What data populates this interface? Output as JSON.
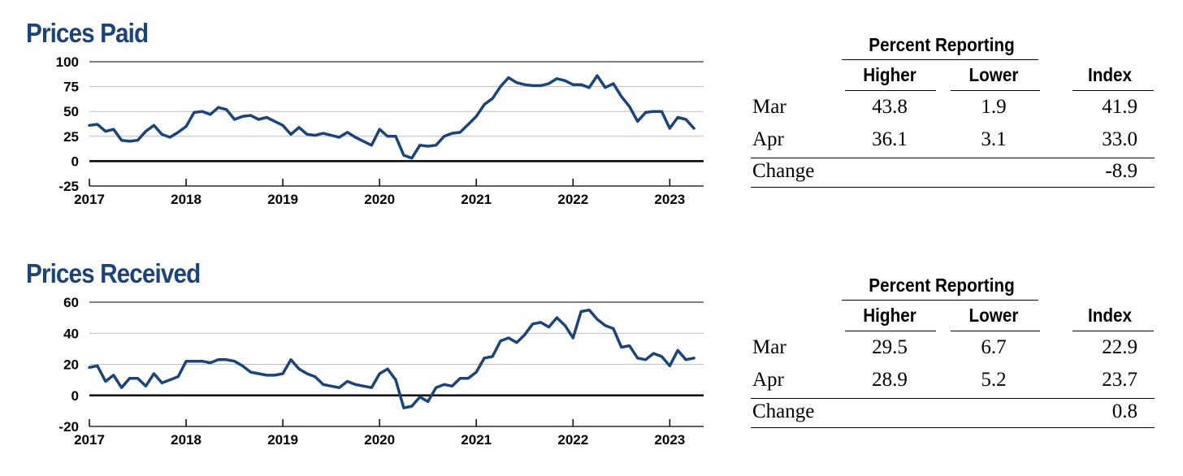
{
  "chart_data": [
    {
      "type": "line",
      "title": "Prices Paid",
      "xlabel": "",
      "ylabel": "",
      "ylim": [
        -25,
        100
      ],
      "yticks": [
        100,
        75,
        50,
        25,
        0,
        -25
      ],
      "xticks": [
        "2017",
        "2018",
        "2019",
        "2020",
        "2021",
        "2022",
        "2023"
      ],
      "xlim": [
        2017.0,
        2023.35
      ],
      "grid": true,
      "color": "#1c4478",
      "series": [
        {
          "x": [
            2017.0,
            2017.083,
            2017.167,
            2017.25,
            2017.333,
            2017.417,
            2017.5,
            2017.583,
            2017.667,
            2017.75,
            2017.833,
            2017.917,
            2018.0,
            2018.083,
            2018.167,
            2018.25,
            2018.333,
            2018.417,
            2018.5,
            2018.583,
            2018.667,
            2018.75,
            2018.833,
            2018.917,
            2019.0,
            2019.083,
            2019.167,
            2019.25,
            2019.333,
            2019.417,
            2019.5,
            2019.583,
            2019.667,
            2019.75,
            2019.833,
            2019.917,
            2020.0,
            2020.083,
            2020.167,
            2020.25,
            2020.333,
            2020.417,
            2020.5,
            2020.583,
            2020.667,
            2020.75,
            2020.833,
            2020.917,
            2021.0,
            2021.083,
            2021.167,
            2021.25,
            2021.333,
            2021.417,
            2021.5,
            2021.583,
            2021.667,
            2021.75,
            2021.833,
            2021.917,
            2022.0,
            2022.083,
            2022.167,
            2022.25,
            2022.333,
            2022.417,
            2022.5,
            2022.583,
            2022.667,
            2022.75,
            2022.833,
            2022.917,
            2023.0,
            2023.083,
            2023.167,
            2023.25
          ],
          "values": [
            36,
            37,
            30,
            32,
            21,
            20,
            21,
            30,
            36,
            27,
            24,
            29,
            35,
            49,
            50,
            47,
            54,
            52,
            42,
            45,
            46,
            42,
            44,
            40,
            36,
            27,
            34,
            27,
            26,
            28,
            26,
            24,
            29,
            24,
            20,
            16,
            32,
            25,
            25,
            6,
            3,
            16,
            15,
            16,
            25,
            28,
            29,
            37,
            45,
            57,
            63,
            75,
            84,
            79,
            77,
            76,
            76,
            78,
            83,
            81,
            77,
            77,
            74,
            86,
            74,
            78,
            65,
            55,
            40,
            49,
            50,
            50,
            33,
            44,
            42,
            33
          ]
        }
      ]
    },
    {
      "type": "line",
      "title": "Prices Received",
      "xlabel": "",
      "ylabel": "",
      "ylim": [
        -20,
        60
      ],
      "yticks": [
        60,
        40,
        20,
        0,
        -20
      ],
      "xticks": [
        "2017",
        "2018",
        "2019",
        "2020",
        "2021",
        "2022",
        "2023"
      ],
      "xlim": [
        2017.0,
        2023.35
      ],
      "grid": true,
      "color": "#1c4478",
      "series": [
        {
          "x": [
            2017.0,
            2017.083,
            2017.167,
            2017.25,
            2017.333,
            2017.417,
            2017.5,
            2017.583,
            2017.667,
            2017.75,
            2017.833,
            2017.917,
            2018.0,
            2018.083,
            2018.167,
            2018.25,
            2018.333,
            2018.417,
            2018.5,
            2018.583,
            2018.667,
            2018.75,
            2018.833,
            2018.917,
            2019.0,
            2019.083,
            2019.167,
            2019.25,
            2019.333,
            2019.417,
            2019.5,
            2019.583,
            2019.667,
            2019.75,
            2019.833,
            2019.917,
            2020.0,
            2020.083,
            2020.167,
            2020.25,
            2020.333,
            2020.417,
            2020.5,
            2020.583,
            2020.667,
            2020.75,
            2020.833,
            2020.917,
            2021.0,
            2021.083,
            2021.167,
            2021.25,
            2021.333,
            2021.417,
            2021.5,
            2021.583,
            2021.667,
            2021.75,
            2021.833,
            2021.917,
            2022.0,
            2022.083,
            2022.167,
            2022.25,
            2022.333,
            2022.417,
            2022.5,
            2022.583,
            2022.667,
            2022.75,
            2022.833,
            2022.917,
            2023.0,
            2023.083,
            2023.167,
            2023.25
          ],
          "values": [
            18,
            19,
            9,
            13,
            5,
            11,
            11,
            6,
            14,
            8,
            10,
            12,
            22,
            22,
            22,
            21,
            23,
            23,
            22,
            19,
            15,
            14,
            13,
            13,
            14,
            23,
            17,
            14,
            12,
            7,
            6,
            5,
            9,
            7,
            6,
            5,
            14,
            17,
            10,
            -8,
            -7,
            -1,
            -4,
            5,
            7,
            6,
            11,
            11,
            15,
            24,
            25,
            35,
            37,
            34,
            39,
            46,
            47,
            44,
            50,
            45,
            37,
            54,
            55,
            49,
            45,
            43,
            31,
            32,
            24,
            23,
            27,
            25,
            19,
            29,
            23,
            24
          ]
        }
      ]
    }
  ],
  "tables": [
    {
      "group_header": "Percent Reporting",
      "headers": {
        "higher": "Higher",
        "lower": "Lower",
        "index": "Index"
      },
      "rows": [
        {
          "label": "Mar",
          "higher": "43.8",
          "lower": "1.9",
          "index": "41.9"
        },
        {
          "label": "Apr",
          "higher": "36.1",
          "lower": "3.1",
          "index": "33.0"
        }
      ],
      "change": {
        "label": "Change",
        "index": "-8.9"
      }
    },
    {
      "group_header": "Percent Reporting",
      "headers": {
        "higher": "Higher",
        "lower": "Lower",
        "index": "Index"
      },
      "rows": [
        {
          "label": "Mar",
          "higher": "29.5",
          "lower": "6.7",
          "index": "22.9"
        },
        {
          "label": "Apr",
          "higher": "28.9",
          "lower": "5.2",
          "index": "23.7"
        }
      ],
      "change": {
        "label": "Change",
        "index": "0.8"
      }
    }
  ]
}
